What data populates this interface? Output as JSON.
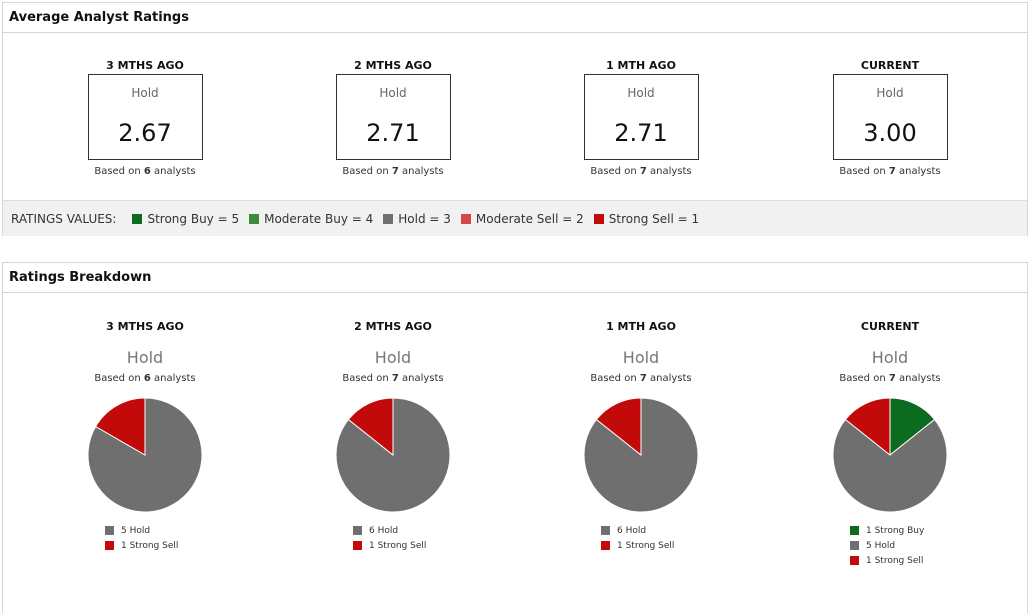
{
  "colors": {
    "strong_buy": "#0b6b1e",
    "moderate_buy": "#3b8c3b",
    "hold": "#6f6f6f",
    "moderate_sell": "#d64747",
    "strong_sell": "#c20a0a"
  },
  "average": {
    "title": "Average Analyst Ratings",
    "periods": [
      {
        "label": "3 MTHS AGO",
        "rating": "Hold",
        "value": "2.67",
        "based_prefix": "Based on",
        "analysts": "6",
        "based_suffix": "analysts"
      },
      {
        "label": "2 MTHS AGO",
        "rating": "Hold",
        "value": "2.71",
        "based_prefix": "Based on",
        "analysts": "7",
        "based_suffix": "analysts"
      },
      {
        "label": "1 MTH AGO",
        "rating": "Hold",
        "value": "2.71",
        "based_prefix": "Based on",
        "analysts": "7",
        "based_suffix": "analysts"
      },
      {
        "label": "CURRENT",
        "rating": "Hold",
        "value": "3.00",
        "based_prefix": "Based on",
        "analysts": "7",
        "based_suffix": "analysts"
      }
    ],
    "legend_title": "RATINGS VALUES:",
    "legend": [
      {
        "label": "Strong Buy = 5",
        "color": "#0b6b1e"
      },
      {
        "label": "Moderate Buy = 4",
        "color": "#3b8c3b"
      },
      {
        "label": "Hold = 3",
        "color": "#6f6f6f"
      },
      {
        "label": "Moderate Sell = 2",
        "color": "#d64747"
      },
      {
        "label": "Strong Sell = 1",
        "color": "#c20a0a"
      }
    ]
  },
  "breakdown": {
    "title": "Ratings Breakdown",
    "periods": [
      {
        "label": "3 MTHS AGO",
        "rating": "Hold",
        "based_prefix": "Based on",
        "analysts": "6",
        "based_suffix": "analysts",
        "slices": [
          {
            "label": "5 Hold",
            "count": 5,
            "color": "#6f6f6f"
          },
          {
            "label": "1 Strong Sell",
            "count": 1,
            "color": "#c20a0a"
          }
        ]
      },
      {
        "label": "2 MTHS AGO",
        "rating": "Hold",
        "based_prefix": "Based on",
        "analysts": "7",
        "based_suffix": "analysts",
        "slices": [
          {
            "label": "6 Hold",
            "count": 6,
            "color": "#6f6f6f"
          },
          {
            "label": "1 Strong Sell",
            "count": 1,
            "color": "#c20a0a"
          }
        ]
      },
      {
        "label": "1 MTH AGO",
        "rating": "Hold",
        "based_prefix": "Based on",
        "analysts": "7",
        "based_suffix": "analysts",
        "slices": [
          {
            "label": "6 Hold",
            "count": 6,
            "color": "#6f6f6f"
          },
          {
            "label": "1 Strong Sell",
            "count": 1,
            "color": "#c20a0a"
          }
        ]
      },
      {
        "label": "CURRENT",
        "rating": "Hold",
        "based_prefix": "Based on",
        "analysts": "7",
        "based_suffix": "analysts",
        "slices": [
          {
            "label": "1 Strong Buy",
            "count": 1,
            "color": "#0b6b1e"
          },
          {
            "label": "5 Hold",
            "count": 5,
            "color": "#6f6f6f"
          },
          {
            "label": "1 Strong Sell",
            "count": 1,
            "color": "#c20a0a"
          }
        ]
      }
    ]
  }
}
